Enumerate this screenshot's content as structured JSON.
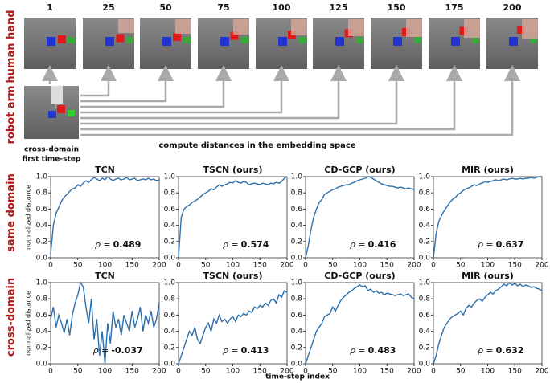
{
  "figure": {
    "frame_labels": [
      "1",
      "25",
      "50",
      "75",
      "100",
      "125",
      "150",
      "175",
      "200"
    ],
    "row_labels": {
      "human": "human hand",
      "robot": "robot arm",
      "same": "same domain",
      "cross": "cross-domain"
    },
    "robot_caption": [
      "cross-domain",
      "first time-step"
    ],
    "arrow_caption": "compute distances in the embedding space",
    "xlabel": "time-step index"
  },
  "chart_data": [
    {
      "type": "line",
      "title": "TCN",
      "ylabel": "normalized distance",
      "color": "#2c6fad",
      "x": [
        0,
        5,
        10,
        15,
        20,
        25,
        30,
        35,
        40,
        45,
        50,
        55,
        60,
        65,
        70,
        75,
        80,
        85,
        90,
        95,
        100,
        105,
        110,
        115,
        120,
        125,
        130,
        135,
        140,
        145,
        150,
        155,
        160,
        165,
        170,
        175,
        180,
        185,
        190,
        195,
        200
      ],
      "values": [
        0.05,
        0.4,
        0.55,
        0.62,
        0.7,
        0.75,
        0.78,
        0.82,
        0.85,
        0.86,
        0.9,
        0.88,
        0.92,
        0.95,
        0.93,
        0.96,
        0.99,
        0.97,
        0.95,
        0.98,
        0.96,
        1.0,
        0.97,
        0.95,
        0.97,
        0.98,
        0.96,
        0.97,
        0.99,
        0.96,
        0.97,
        0.98,
        0.95,
        0.96,
        0.97,
        0.96,
        0.98,
        0.96,
        0.97,
        0.95,
        0.96
      ],
      "xlim": [
        0,
        200
      ],
      "xticks": [
        0,
        50,
        100,
        150,
        200
      ],
      "ylim": [
        0,
        1
      ],
      "yticks": [
        {
          "value": 0,
          "label": "0.0"
        },
        0.2,
        0.4,
        0.6,
        0.8,
        {
          "value": 1,
          "label": "1.0"
        }
      ],
      "rho_label": "ρ =",
      "rho": 0.489
    },
    {
      "type": "line",
      "title": "TSCN (ours)",
      "color": "#2c6fad",
      "x": [
        0,
        5,
        10,
        15,
        20,
        25,
        30,
        35,
        40,
        45,
        50,
        55,
        60,
        65,
        70,
        75,
        80,
        85,
        90,
        95,
        100,
        105,
        110,
        115,
        120,
        125,
        130,
        135,
        140,
        145,
        150,
        155,
        160,
        165,
        170,
        175,
        180,
        185,
        190,
        195,
        200
      ],
      "values": [
        0.0,
        0.5,
        0.6,
        0.63,
        0.65,
        0.68,
        0.7,
        0.72,
        0.75,
        0.78,
        0.8,
        0.82,
        0.85,
        0.84,
        0.87,
        0.9,
        0.88,
        0.9,
        0.91,
        0.93,
        0.92,
        0.95,
        0.93,
        0.92,
        0.94,
        0.93,
        0.9,
        0.91,
        0.92,
        0.91,
        0.9,
        0.92,
        0.91,
        0.9,
        0.92,
        0.91,
        0.93,
        0.92,
        0.94,
        0.98,
        1.0
      ],
      "xlim": [
        0,
        200
      ],
      "xticks": [
        0,
        50,
        100,
        150,
        200
      ],
      "ylim": [
        0,
        1
      ],
      "yticks": [
        {
          "value": 0,
          "label": "0.0"
        },
        0.2,
        0.4,
        0.6,
        0.8,
        {
          "value": 1,
          "label": "1.0"
        }
      ],
      "rho_label": "ρ =",
      "rho": 0.574
    },
    {
      "type": "line",
      "title": "CD-GCP (ours)",
      "color": "#2c6fad",
      "x": [
        0,
        5,
        10,
        15,
        20,
        25,
        30,
        35,
        40,
        45,
        50,
        55,
        60,
        65,
        70,
        75,
        80,
        85,
        90,
        95,
        100,
        105,
        110,
        115,
        120,
        125,
        130,
        135,
        140,
        145,
        150,
        155,
        160,
        165,
        170,
        175,
        180,
        185,
        190,
        195,
        200
      ],
      "values": [
        0.0,
        0.15,
        0.35,
        0.5,
        0.6,
        0.68,
        0.72,
        0.78,
        0.8,
        0.82,
        0.84,
        0.85,
        0.87,
        0.88,
        0.89,
        0.9,
        0.9,
        0.92,
        0.93,
        0.95,
        0.96,
        0.97,
        0.98,
        1.0,
        0.99,
        0.97,
        0.95,
        0.93,
        0.91,
        0.9,
        0.89,
        0.88,
        0.88,
        0.87,
        0.86,
        0.87,
        0.86,
        0.85,
        0.86,
        0.85,
        0.84
      ],
      "xlim": [
        0,
        200
      ],
      "xticks": [
        0,
        50,
        100,
        150,
        200
      ],
      "ylim": [
        0,
        1
      ],
      "yticks": [
        {
          "value": 0,
          "label": "0.0"
        },
        0.2,
        0.4,
        0.6,
        0.8,
        {
          "value": 1,
          "label": "1.0"
        }
      ],
      "rho_label": "ρ =",
      "rho": 0.416
    },
    {
      "type": "line",
      "title": "MIR (ours)",
      "color": "#2c6fad",
      "x": [
        0,
        5,
        10,
        15,
        20,
        25,
        30,
        35,
        40,
        45,
        50,
        55,
        60,
        65,
        70,
        75,
        80,
        85,
        90,
        95,
        100,
        105,
        110,
        115,
        120,
        125,
        130,
        135,
        140,
        145,
        150,
        155,
        160,
        165,
        170,
        175,
        180,
        185,
        190,
        195,
        200
      ],
      "values": [
        0.0,
        0.3,
        0.45,
        0.52,
        0.58,
        0.63,
        0.68,
        0.72,
        0.74,
        0.78,
        0.8,
        0.83,
        0.85,
        0.86,
        0.88,
        0.9,
        0.89,
        0.91,
        0.92,
        0.94,
        0.93,
        0.94,
        0.95,
        0.96,
        0.95,
        0.96,
        0.97,
        0.96,
        0.97,
        0.98,
        0.97,
        0.97,
        0.98,
        0.97,
        0.98,
        0.98,
        0.99,
        0.98,
        0.99,
        1.0,
        1.0
      ],
      "xlim": [
        0,
        200
      ],
      "xticks": [
        0,
        50,
        100,
        150,
        200
      ],
      "ylim": [
        0,
        1
      ],
      "yticks": [
        {
          "value": 0,
          "label": "0.0"
        },
        0.2,
        0.4,
        0.6,
        0.8,
        {
          "value": 1,
          "label": "1.0"
        }
      ],
      "rho_label": "ρ =",
      "rho": 0.637
    },
    {
      "type": "line",
      "title": "TCN",
      "ylabel": "normalized distance",
      "color": "#2c6fad",
      "x": [
        0,
        5,
        10,
        15,
        20,
        25,
        30,
        35,
        40,
        45,
        50,
        55,
        60,
        65,
        70,
        75,
        80,
        85,
        90,
        95,
        100,
        105,
        110,
        115,
        120,
        125,
        130,
        135,
        140,
        145,
        150,
        155,
        160,
        165,
        170,
        175,
        180,
        185,
        190,
        195,
        200
      ],
      "values": [
        0.55,
        0.7,
        0.45,
        0.6,
        0.5,
        0.38,
        0.55,
        0.35,
        0.6,
        0.75,
        0.85,
        1.0,
        0.95,
        0.7,
        0.5,
        0.8,
        0.3,
        0.55,
        0.1,
        0.4,
        0.0,
        0.5,
        0.25,
        0.65,
        0.45,
        0.55,
        0.35,
        0.6,
        0.5,
        0.4,
        0.65,
        0.45,
        0.55,
        0.7,
        0.4,
        0.6,
        0.5,
        0.65,
        0.45,
        0.55,
        0.75
      ],
      "xlim": [
        0,
        200
      ],
      "xticks": [
        0,
        50,
        100,
        150,
        200
      ],
      "ylim": [
        0,
        1
      ],
      "yticks": [
        {
          "value": 0,
          "label": "0.0"
        },
        0.2,
        0.4,
        0.6,
        0.8,
        {
          "value": 1,
          "label": "1.0"
        }
      ],
      "rho_label": "ρ =",
      "rho": -0.037
    },
    {
      "type": "line",
      "title": "TSCN (ours)",
      "color": "#2c6fad",
      "x": [
        0,
        5,
        10,
        15,
        20,
        25,
        30,
        35,
        40,
        45,
        50,
        55,
        60,
        65,
        70,
        75,
        80,
        85,
        90,
        95,
        100,
        105,
        110,
        115,
        120,
        125,
        130,
        135,
        140,
        145,
        150,
        155,
        160,
        165,
        170,
        175,
        180,
        185,
        190,
        195,
        200
      ],
      "values": [
        0.0,
        0.1,
        0.2,
        0.3,
        0.4,
        0.35,
        0.45,
        0.3,
        0.25,
        0.35,
        0.45,
        0.5,
        0.4,
        0.55,
        0.5,
        0.6,
        0.52,
        0.55,
        0.5,
        0.55,
        0.58,
        0.52,
        0.6,
        0.58,
        0.62,
        0.6,
        0.65,
        0.63,
        0.7,
        0.68,
        0.72,
        0.7,
        0.75,
        0.72,
        0.78,
        0.8,
        0.75,
        0.85,
        0.82,
        0.9,
        0.88
      ],
      "xlim": [
        0,
        200
      ],
      "xticks": [
        0,
        50,
        100,
        150,
        200
      ],
      "ylim": [
        0,
        1
      ],
      "yticks": [
        {
          "value": 0,
          "label": "0.0"
        },
        0.2,
        0.4,
        0.6,
        0.8,
        {
          "value": 1,
          "label": "1.0"
        }
      ],
      "rho_label": "ρ =",
      "rho": 0.413
    },
    {
      "type": "line",
      "title": "CD-GCP (ours)",
      "color": "#2c6fad",
      "x": [
        0,
        5,
        10,
        15,
        20,
        25,
        30,
        35,
        40,
        45,
        50,
        55,
        60,
        65,
        70,
        75,
        80,
        85,
        90,
        95,
        100,
        105,
        110,
        115,
        120,
        125,
        130,
        135,
        140,
        145,
        150,
        155,
        160,
        165,
        170,
        175,
        180,
        185,
        190,
        195,
        200
      ],
      "values": [
        0.0,
        0.1,
        0.2,
        0.3,
        0.4,
        0.45,
        0.5,
        0.58,
        0.6,
        0.62,
        0.7,
        0.65,
        0.72,
        0.78,
        0.82,
        0.85,
        0.88,
        0.9,
        0.93,
        0.95,
        0.97,
        0.95,
        0.96,
        0.9,
        0.92,
        0.88,
        0.9,
        0.87,
        0.88,
        0.85,
        0.87,
        0.86,
        0.85,
        0.84,
        0.85,
        0.86,
        0.84,
        0.85,
        0.86,
        0.82,
        0.8
      ],
      "xlim": [
        0,
        200
      ],
      "xticks": [
        0,
        50,
        100,
        150,
        200
      ],
      "ylim": [
        0,
        1
      ],
      "yticks": [
        {
          "value": 0,
          "label": "0.0"
        },
        0.2,
        0.4,
        0.6,
        0.8,
        {
          "value": 1,
          "label": "1.0"
        }
      ],
      "rho_label": "ρ =",
      "rho": 0.483
    },
    {
      "type": "line",
      "title": "MIR (ours)",
      "color": "#2c6fad",
      "x": [
        0,
        5,
        10,
        15,
        20,
        25,
        30,
        35,
        40,
        45,
        50,
        55,
        60,
        65,
        70,
        75,
        80,
        85,
        90,
        95,
        100,
        105,
        110,
        115,
        120,
        125,
        130,
        135,
        140,
        145,
        150,
        155,
        160,
        165,
        170,
        175,
        180,
        185,
        190,
        195,
        200
      ],
      "values": [
        0.0,
        0.1,
        0.25,
        0.35,
        0.45,
        0.5,
        0.55,
        0.58,
        0.6,
        0.62,
        0.65,
        0.6,
        0.68,
        0.72,
        0.7,
        0.75,
        0.78,
        0.8,
        0.77,
        0.82,
        0.85,
        0.88,
        0.86,
        0.9,
        0.92,
        0.95,
        0.98,
        0.96,
        1.0,
        0.97,
        0.99,
        0.96,
        0.98,
        0.95,
        0.97,
        0.96,
        0.94,
        0.95,
        0.93,
        0.92,
        0.9
      ],
      "xlim": [
        0,
        200
      ],
      "xticks": [
        0,
        50,
        100,
        150,
        200
      ],
      "ylim": [
        0,
        1
      ],
      "yticks": [
        {
          "value": 0,
          "label": "0.0"
        },
        0.2,
        0.4,
        0.6,
        0.8,
        {
          "value": 1,
          "label": "1.0"
        }
      ],
      "rho_label": "ρ =",
      "rho": 0.632
    }
  ]
}
